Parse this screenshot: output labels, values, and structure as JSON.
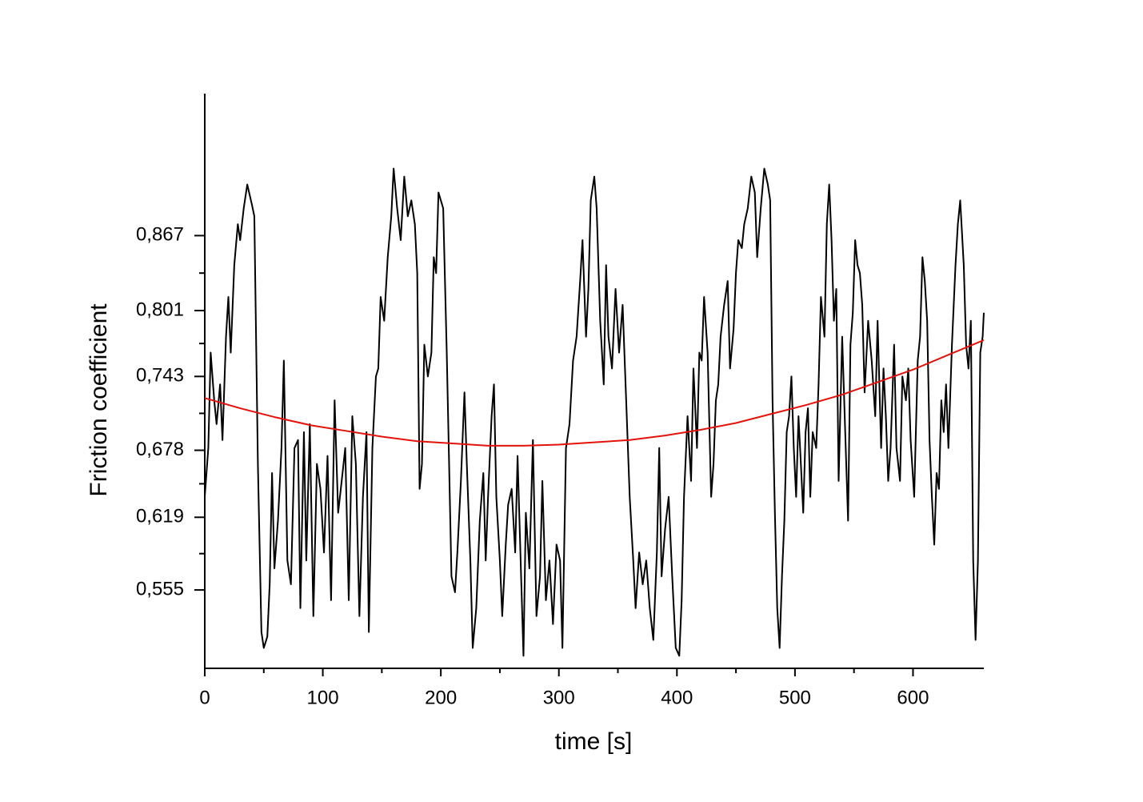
{
  "chart_data": {
    "type": "line",
    "xlabel": "time [s]",
    "ylabel": "Friction coefficient",
    "xlim": [
      0,
      660
    ],
    "ylim": [
      0.486,
      0.992
    ],
    "xticks": [
      0,
      100,
      200,
      300,
      400,
      500,
      600
    ],
    "yticks": [
      {
        "value": 0.555,
        "label": "0,555"
      },
      {
        "value": 0.619,
        "label": "0,619"
      },
      {
        "value": 0.678,
        "label": "0,678"
      },
      {
        "value": 0.743,
        "label": "0,743"
      },
      {
        "value": 0.801,
        "label": "0,801"
      },
      {
        "value": 0.867,
        "label": "0,867"
      }
    ],
    "grid": false,
    "series": [
      {
        "color": "#000000",
        "x": [
          0,
          3,
          5,
          8,
          10,
          13,
          15,
          18,
          20,
          22,
          25,
          28,
          30,
          33,
          36,
          40,
          42,
          45,
          48,
          50,
          53,
          55,
          57,
          59,
          62,
          65,
          67,
          70,
          73,
          76,
          79,
          81,
          84,
          86,
          89,
          92,
          95,
          98,
          101,
          104,
          107,
          110,
          113,
          116,
          119,
          122,
          125,
          128,
          131,
          134,
          137,
          139,
          142,
          145,
          147,
          149,
          152,
          155,
          158,
          160,
          163,
          166,
          169,
          172,
          175,
          178,
          180,
          182,
          184,
          186,
          189,
          192,
          194,
          196,
          198,
          202,
          205,
          207,
          209,
          212,
          214,
          217,
          220,
          222,
          225,
          227,
          230,
          233,
          236,
          238,
          240,
          243,
          245,
          247,
          250,
          252,
          255,
          257,
          260,
          263,
          265,
          268,
          270,
          272,
          275,
          278,
          281,
          284,
          286,
          289,
          292,
          295,
          298,
          301,
          303,
          306,
          309,
          312,
          315,
          318,
          320,
          323,
          325,
          327,
          330,
          332,
          335,
          338,
          340,
          342,
          345,
          348,
          351,
          354,
          357,
          360,
          363,
          365,
          368,
          371,
          374,
          377,
          380,
          383,
          385,
          387,
          390,
          393,
          396,
          399,
          402,
          404,
          406,
          409,
          412,
          414,
          417,
          419,
          421,
          423,
          426,
          429,
          431,
          433,
          435,
          437,
          440,
          443,
          445,
          448,
          450,
          452,
          455,
          457,
          460,
          463,
          466,
          468,
          471,
          474,
          477,
          479,
          481,
          483,
          485,
          487,
          489,
          491,
          493,
          495,
          497,
          499,
          501,
          503,
          505,
          507,
          509,
          511,
          513,
          515,
          518,
          520,
          522,
          525,
          527,
          529,
          531,
          533,
          535,
          537,
          540,
          543,
          545,
          547,
          549,
          551,
          553,
          555,
          557,
          559,
          562,
          565,
          568,
          570,
          573,
          575,
          577,
          579,
          581,
          584,
          586,
          589,
          591,
          594,
          596,
          598,
          601,
          604,
          606,
          608,
          610,
          612,
          614,
          616,
          618,
          620,
          622,
          624,
          626,
          628,
          630,
          633,
          636,
          638,
          640,
          643,
          645,
          647,
          649,
          651,
          653,
          655,
          657,
          659,
          660
        ],
        "values": [
          0.637,
          0.68,
          0.764,
          0.722,
          0.701,
          0.736,
          0.687,
          0.778,
          0.813,
          0.764,
          0.841,
          0.877,
          0.863,
          0.891,
          0.912,
          0.894,
          0.884,
          0.666,
          0.518,
          0.504,
          0.514,
          0.56,
          0.658,
          0.574,
          0.616,
          0.68,
          0.757,
          0.581,
          0.56,
          0.68,
          0.687,
          0.539,
          0.694,
          0.581,
          0.701,
          0.532,
          0.666,
          0.644,
          0.588,
          0.673,
          0.546,
          0.722,
          0.623,
          0.651,
          0.68,
          0.546,
          0.708,
          0.666,
          0.532,
          0.637,
          0.694,
          0.518,
          0.68,
          0.743,
          0.75,
          0.813,
          0.792,
          0.848,
          0.884,
          0.926,
          0.891,
          0.863,
          0.919,
          0.884,
          0.898,
          0.877,
          0.834,
          0.644,
          0.666,
          0.771,
          0.743,
          0.764,
          0.848,
          0.834,
          0.905,
          0.891,
          0.764,
          0.666,
          0.567,
          0.553,
          0.588,
          0.651,
          0.729,
          0.666,
          0.581,
          0.504,
          0.539,
          0.616,
          0.658,
          0.581,
          0.637,
          0.708,
          0.736,
          0.637,
          0.581,
          0.532,
          0.595,
          0.63,
          0.644,
          0.588,
          0.673,
          0.567,
          0.497,
          0.623,
          0.574,
          0.687,
          0.532,
          0.567,
          0.651,
          0.546,
          0.581,
          0.525,
          0.595,
          0.581,
          0.504,
          0.68,
          0.701,
          0.757,
          0.778,
          0.827,
          0.863,
          0.778,
          0.82,
          0.898,
          0.919,
          0.891,
          0.792,
          0.736,
          0.841,
          0.778,
          0.75,
          0.82,
          0.764,
          0.806,
          0.722,
          0.637,
          0.581,
          0.539,
          0.588,
          0.56,
          0.581,
          0.539,
          0.511,
          0.588,
          0.68,
          0.567,
          0.609,
          0.637,
          0.567,
          0.504,
          0.497,
          0.546,
          0.637,
          0.708,
          0.651,
          0.75,
          0.68,
          0.764,
          0.757,
          0.813,
          0.764,
          0.637,
          0.666,
          0.722,
          0.736,
          0.778,
          0.806,
          0.827,
          0.75,
          0.785,
          0.834,
          0.863,
          0.856,
          0.877,
          0.891,
          0.919,
          0.905,
          0.848,
          0.891,
          0.926,
          0.912,
          0.898,
          0.722,
          0.623,
          0.539,
          0.504,
          0.567,
          0.616,
          0.694,
          0.708,
          0.743,
          0.68,
          0.637,
          0.708,
          0.666,
          0.623,
          0.694,
          0.715,
          0.637,
          0.694,
          0.68,
          0.736,
          0.813,
          0.778,
          0.877,
          0.912,
          0.863,
          0.792,
          0.82,
          0.651,
          0.778,
          0.68,
          0.616,
          0.771,
          0.799,
          0.863,
          0.841,
          0.834,
          0.806,
          0.729,
          0.792,
          0.757,
          0.708,
          0.792,
          0.68,
          0.75,
          0.708,
          0.651,
          0.68,
          0.771,
          0.68,
          0.651,
          0.743,
          0.722,
          0.75,
          0.687,
          0.637,
          0.757,
          0.778,
          0.848,
          0.827,
          0.792,
          0.687,
          0.637,
          0.595,
          0.658,
          0.644,
          0.722,
          0.694,
          0.736,
          0.68,
          0.771,
          0.841,
          0.877,
          0.898,
          0.841,
          0.771,
          0.75,
          0.792,
          0.581,
          0.511,
          0.581,
          0.764,
          0.778,
          0.799
        ]
      },
      {
        "color": "#e3120b",
        "x": [
          0,
          30,
          60,
          90,
          120,
          150,
          180,
          210,
          240,
          270,
          300,
          330,
          360,
          390,
          420,
          450,
          480,
          510,
          540,
          570,
          600,
          630,
          660
        ],
        "values": [
          0.724,
          0.715,
          0.707,
          0.7,
          0.695,
          0.69,
          0.686,
          0.684,
          0.682,
          0.682,
          0.683,
          0.685,
          0.687,
          0.691,
          0.696,
          0.702,
          0.71,
          0.718,
          0.727,
          0.738,
          0.749,
          0.762,
          0.775
        ]
      }
    ]
  }
}
